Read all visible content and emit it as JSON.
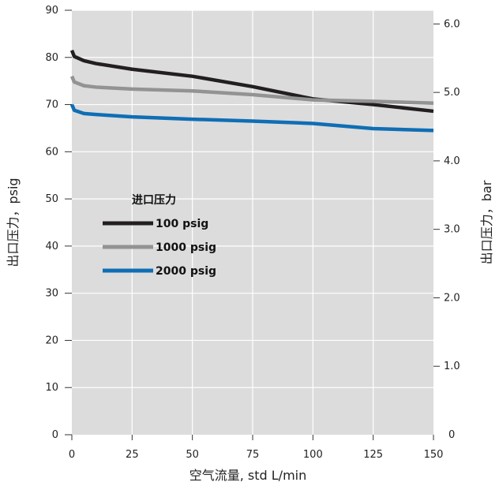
{
  "chart_data": {
    "type": "line",
    "title": "",
    "xlabel": "空气流量, std L/min",
    "ylabel": "出口压力，psig",
    "y2label": "出口压力，bar",
    "xlim": [
      0,
      150
    ],
    "ylim": [
      0,
      90
    ],
    "y2lim": [
      0,
      6.2
    ],
    "x_ticks": [
      "0",
      "25",
      "50",
      "75",
      "100",
      "125",
      "150"
    ],
    "y_ticks": [
      "0",
      "10",
      "20",
      "30",
      "40",
      "50",
      "60",
      "70",
      "80",
      "90"
    ],
    "y2_ticks": [
      "0",
      "1.0",
      "2.0",
      "3.0",
      "4.0",
      "5.0",
      "6.0"
    ],
    "grid": true,
    "background": "#dcdcdc",
    "legend": {
      "title": "进口压力",
      "placement": "center-left"
    },
    "series": [
      {
        "name": "100 psig",
        "color": "#231f20",
        "points": [
          [
            0,
            81.5
          ],
          [
            1,
            80.2
          ],
          [
            5,
            79.3
          ],
          [
            10,
            78.7
          ],
          [
            25,
            77.5
          ],
          [
            50,
            76.0
          ],
          [
            75,
            73.8
          ],
          [
            100,
            71.2
          ],
          [
            125,
            70.0
          ],
          [
            150,
            68.6
          ]
        ]
      },
      {
        "name": "1000 psig",
        "color": "#939393",
        "points": [
          [
            0,
            76.0
          ],
          [
            1,
            74.8
          ],
          [
            5,
            74.0
          ],
          [
            10,
            73.7
          ],
          [
            25,
            73.3
          ],
          [
            50,
            72.9
          ],
          [
            75,
            72.1
          ],
          [
            100,
            71.0
          ],
          [
            125,
            70.7
          ],
          [
            150,
            70.3
          ]
        ]
      },
      {
        "name": "2000 psig",
        "color": "#0f6eb5",
        "points": [
          [
            0,
            70.0
          ],
          [
            1,
            68.8
          ],
          [
            5,
            68.1
          ],
          [
            10,
            67.9
          ],
          [
            25,
            67.4
          ],
          [
            50,
            66.9
          ],
          [
            75,
            66.5
          ],
          [
            100,
            66.0
          ],
          [
            125,
            64.9
          ],
          [
            150,
            64.5
          ]
        ]
      }
    ]
  }
}
